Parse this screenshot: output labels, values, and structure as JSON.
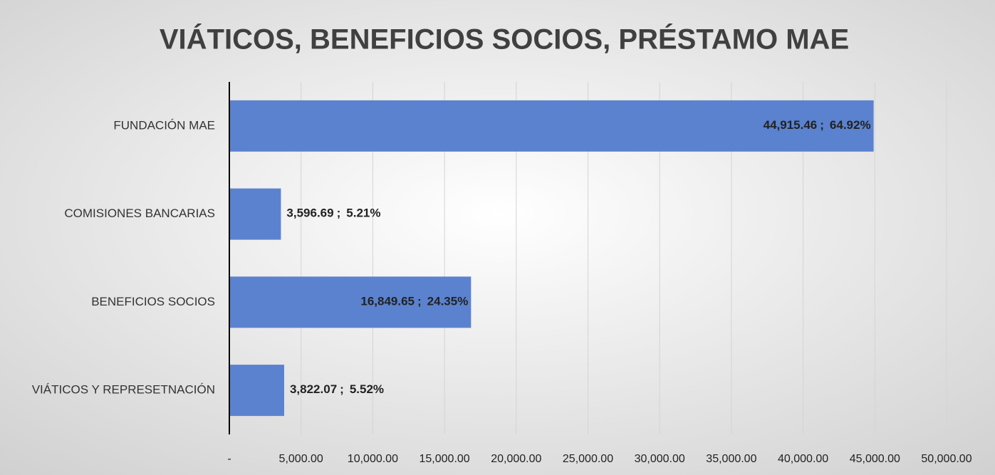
{
  "chart_data": {
    "type": "barh",
    "title": "VIÁTICOS, BENEFICIOS SOCIOS, PRÉSTAMO MAE",
    "categories": [
      "FUNDACIÓN MAE",
      "COMISIONES BANCARIAS",
      "BENEFICIOS SOCIOS",
      "VIÁTICOS Y REPRESETNACIÓN"
    ],
    "values": [
      44915.46,
      3596.69,
      16849.65,
      3822.07
    ],
    "value_labels": [
      "44,915.46",
      "3,596.69",
      "16,849.65",
      "3,822.07"
    ],
    "label_separator": ";",
    "percentages": [
      64.92,
      5.21,
      24.35,
      5.52
    ],
    "percent_labels": [
      "64.92%",
      "5.21%",
      "24.35%",
      "5.52%"
    ],
    "color": "#5b82cf",
    "xlim": [
      0,
      50000
    ],
    "xticks": [
      {
        "value": 0,
        "label": "-"
      },
      {
        "value": 5000,
        "label": "5,000.00"
      },
      {
        "value": 10000,
        "label": "10,000.00"
      },
      {
        "value": 15000,
        "label": "15,000.00"
      },
      {
        "value": 20000,
        "label": "20,000.00"
      },
      {
        "value": 25000,
        "label": "25,000.00"
      },
      {
        "value": 30000,
        "label": "30,000.00"
      },
      {
        "value": 35000,
        "label": "35,000.00"
      },
      {
        "value": 40000,
        "label": "40,000.00"
      },
      {
        "value": 45000,
        "label": "45,000.00"
      },
      {
        "value": 50000,
        "label": "50,000.00"
      }
    ],
    "grid": true
  }
}
